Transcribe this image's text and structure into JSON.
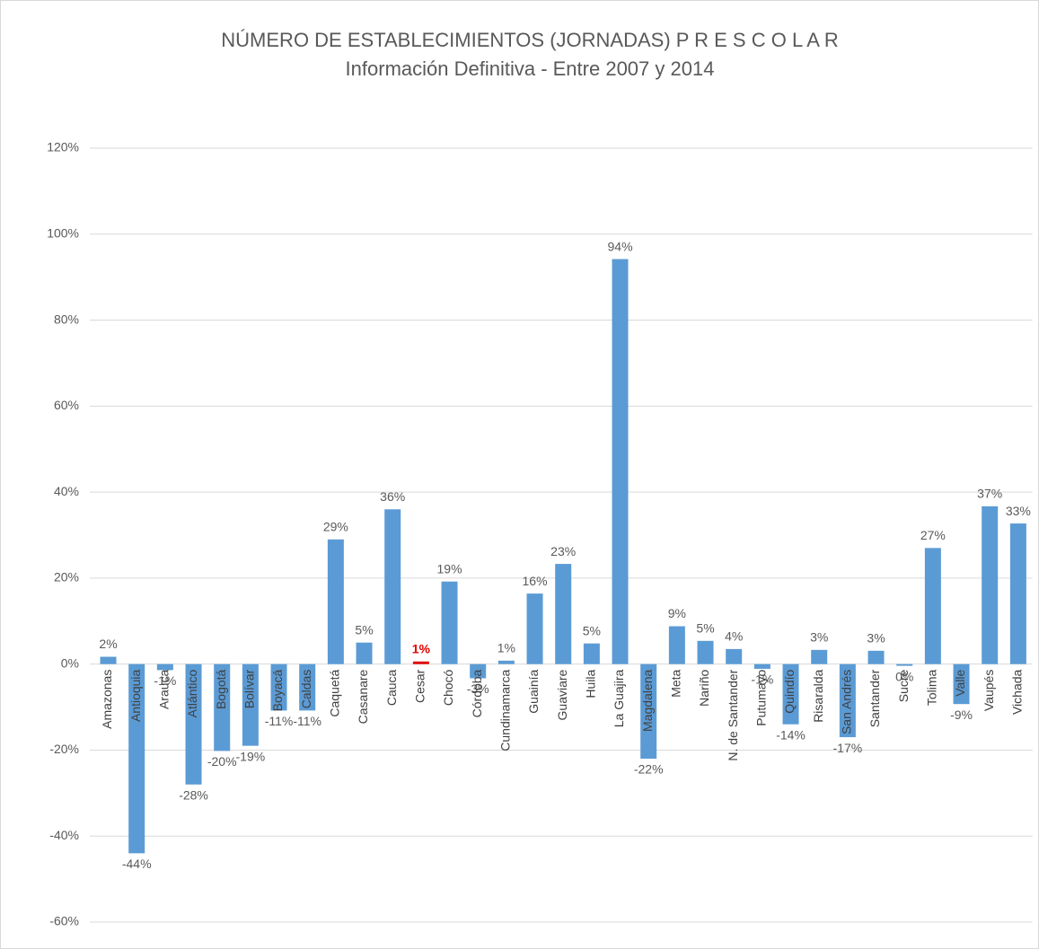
{
  "chart_data": {
    "type": "bar",
    "title": "NÚMERO DE ESTABLECIMIENTOS (JORNADAS) P R E S C O L A R",
    "subtitle": "Información Definitiva - Entre 2007 y 2014",
    "categories": [
      "Amazonas",
      "Antioquia",
      "Arauca",
      "Atlántico",
      "Bogotá",
      "Bolívar",
      "Boyacá",
      "Caldas",
      "Caquetá",
      "Casanare",
      "Cauca",
      "Cesar",
      "Chocó",
      "Córdoba",
      "Cundinamarca",
      "Guainía",
      "Guaviare",
      "Huila",
      "La Guajira",
      "Magdalena",
      "Meta",
      "Nariño",
      "N. de Santander",
      "Putumayo",
      "Quindío",
      "Risaralda",
      "San Andrés",
      "Santander",
      "Sucre",
      "Tolima",
      "Valle",
      "Vaupés",
      "Vichada"
    ],
    "values": [
      1.7,
      -44,
      -1.4,
      -28,
      -20.2,
      -19,
      -10.8,
      -10.8,
      29,
      5,
      36,
      0.6,
      19.2,
      -3.3,
      0.8,
      16.4,
      23.3,
      4.8,
      94.2,
      -22,
      8.8,
      5.4,
      3.5,
      -1.1,
      -14,
      3.3,
      -17,
      3.1,
      -0.4,
      27,
      -9.3,
      36.7,
      32.7
    ],
    "value_labels": [
      "2%",
      "-44%",
      "-1%",
      "-28%",
      "-20%",
      "-19%",
      "-11%",
      "-11%",
      "29%",
      "5%",
      "36%",
      "1%",
      "19%",
      "-3%",
      "1%",
      "16%",
      "23%",
      "5%",
      "94%",
      "-22%",
      "9%",
      "5%",
      "4%",
      "-1%",
      "-14%",
      "3%",
      "-17%",
      "3%",
      "0%",
      "27%",
      "-9%",
      "37%",
      "33%"
    ],
    "colors": [
      "#5b9bd5",
      "#5b9bd5",
      "#5b9bd5",
      "#5b9bd5",
      "#5b9bd5",
      "#5b9bd5",
      "#5b9bd5",
      "#5b9bd5",
      "#5b9bd5",
      "#5b9bd5",
      "#5b9bd5",
      "#e00000",
      "#5b9bd5",
      "#5b9bd5",
      "#5b9bd5",
      "#5b9bd5",
      "#5b9bd5",
      "#5b9bd5",
      "#5b9bd5",
      "#5b9bd5",
      "#5b9bd5",
      "#5b9bd5",
      "#5b9bd5",
      "#5b9bd5",
      "#5b9bd5",
      "#5b9bd5",
      "#5b9bd5",
      "#5b9bd5",
      "#5b9bd5",
      "#5b9bd5",
      "#5b9bd5",
      "#5b9bd5",
      "#5b9bd5"
    ],
    "ylim": [
      -60,
      120
    ],
    "yticks": [
      {
        "value": -60,
        "label": "-60%"
      },
      {
        "value": -40,
        "label": "-40%"
      },
      {
        "value": -20,
        "label": "-20%"
      },
      {
        "value": 0,
        "label": "0%"
      },
      {
        "value": 20,
        "label": "20%"
      },
      {
        "value": 40,
        "label": "40%"
      },
      {
        "value": 60,
        "label": "60%"
      },
      {
        "value": 80,
        "label": "80%"
      },
      {
        "value": 100,
        "label": "100%"
      },
      {
        "value": 120,
        "label": "120%"
      }
    ],
    "grid": true
  }
}
